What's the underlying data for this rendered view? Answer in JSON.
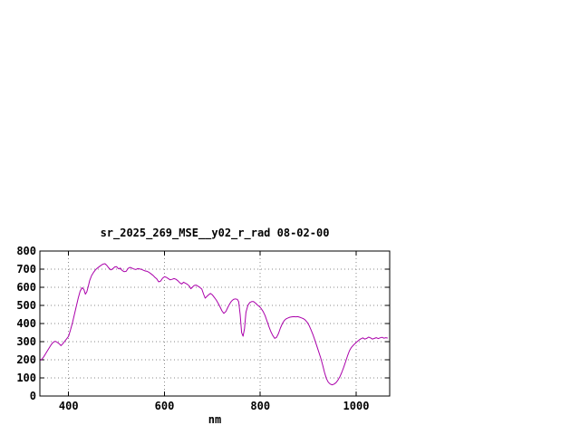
{
  "page": {
    "background": "#ffffff"
  },
  "chart_data": {
    "type": "line",
    "title": "sr_2025_269_MSE__y02_r_rad 08-02-00",
    "xlabel": "nm",
    "ylabel": "",
    "xlim": [
      340,
      1070
    ],
    "ylim": [
      0,
      800
    ],
    "xticks": [
      400,
      600,
      800,
      1000
    ],
    "yticks": [
      0,
      100,
      200,
      300,
      400,
      500,
      600,
      700,
      800
    ],
    "grid": true,
    "legend": "none",
    "axis_color": "#000000",
    "grid_color": "#8a8a8a",
    "text_color": "#000000",
    "series": [
      {
        "name": "sr_2025_269_MSE__y02_r_rad",
        "color": "#aa00aa",
        "points": [
          [
            342,
            198
          ],
          [
            345,
            206
          ],
          [
            348,
            216
          ],
          [
            352,
            233
          ],
          [
            356,
            251
          ],
          [
            360,
            268
          ],
          [
            364,
            285
          ],
          [
            368,
            297
          ],
          [
            372,
            302
          ],
          [
            376,
            297
          ],
          [
            380,
            289
          ],
          [
            384,
            278
          ],
          [
            388,
            289
          ],
          [
            392,
            303
          ],
          [
            396,
            316
          ],
          [
            400,
            330
          ],
          [
            404,
            365
          ],
          [
            408,
            405
          ],
          [
            412,
            450
          ],
          [
            416,
            495
          ],
          [
            420,
            540
          ],
          [
            424,
            578
          ],
          [
            428,
            598
          ],
          [
            432,
            588
          ],
          [
            435,
            562
          ],
          [
            438,
            575
          ],
          [
            441,
            605
          ],
          [
            444,
            638
          ],
          [
            448,
            665
          ],
          [
            452,
            682
          ],
          [
            456,
            696
          ],
          [
            460,
            706
          ],
          [
            464,
            714
          ],
          [
            468,
            722
          ],
          [
            472,
            728
          ],
          [
            476,
            730
          ],
          [
            480,
            720
          ],
          [
            484,
            706
          ],
          [
            488,
            696
          ],
          [
            492,
            702
          ],
          [
            496,
            712
          ],
          [
            500,
            714
          ],
          [
            504,
            702
          ],
          [
            508,
            706
          ],
          [
            512,
            692
          ],
          [
            516,
            686
          ],
          [
            520,
            688
          ],
          [
            524,
            704
          ],
          [
            528,
            710
          ],
          [
            532,
            706
          ],
          [
            536,
            701
          ],
          [
            540,
            698
          ],
          [
            544,
            703
          ],
          [
            548,
            701
          ],
          [
            552,
            699
          ],
          [
            556,
            694
          ],
          [
            560,
            690
          ],
          [
            564,
            688
          ],
          [
            568,
            682
          ],
          [
            572,
            674
          ],
          [
            576,
            666
          ],
          [
            580,
            655
          ],
          [
            584,
            646
          ],
          [
            588,
            630
          ],
          [
            592,
            634
          ],
          [
            596,
            650
          ],
          [
            600,
            658
          ],
          [
            604,
            655
          ],
          [
            608,
            648
          ],
          [
            612,
            641
          ],
          [
            616,
            644
          ],
          [
            620,
            648
          ],
          [
            624,
            644
          ],
          [
            628,
            636
          ],
          [
            632,
            625
          ],
          [
            636,
            618
          ],
          [
            640,
            628
          ],
          [
            644,
            622
          ],
          [
            648,
            616
          ],
          [
            652,
            606
          ],
          [
            655,
            592
          ],
          [
            658,
            600
          ],
          [
            662,
            610
          ],
          [
            666,
            612
          ],
          [
            670,
            606
          ],
          [
            674,
            599
          ],
          [
            678,
            590
          ],
          [
            682,
            560
          ],
          [
            685,
            540
          ],
          [
            688,
            548
          ],
          [
            692,
            558
          ],
          [
            696,
            566
          ],
          [
            700,
            558
          ],
          [
            704,
            544
          ],
          [
            708,
            530
          ],
          [
            712,
            512
          ],
          [
            716,
            492
          ],
          [
            720,
            470
          ],
          [
            724,
            456
          ],
          [
            728,
            466
          ],
          [
            732,
            488
          ],
          [
            736,
            508
          ],
          [
            740,
            524
          ],
          [
            744,
            533
          ],
          [
            748,
            536
          ],
          [
            752,
            533
          ],
          [
            755,
            520
          ],
          [
            758,
            450
          ],
          [
            761,
            350
          ],
          [
            764,
            330
          ],
          [
            767,
            372
          ],
          [
            770,
            462
          ],
          [
            774,
            500
          ],
          [
            778,
            516
          ],
          [
            782,
            521
          ],
          [
            786,
            521
          ],
          [
            790,
            513
          ],
          [
            794,
            502
          ],
          [
            798,
            494
          ],
          [
            802,
            482
          ],
          [
            806,
            466
          ],
          [
            810,
            444
          ],
          [
            814,
            414
          ],
          [
            818,
            382
          ],
          [
            822,
            355
          ],
          [
            826,
            334
          ],
          [
            830,
            318
          ],
          [
            834,
            324
          ],
          [
            838,
            345
          ],
          [
            842,
            375
          ],
          [
            846,
            400
          ],
          [
            850,
            417
          ],
          [
            854,
            426
          ],
          [
            858,
            431
          ],
          [
            862,
            435
          ],
          [
            866,
            437
          ],
          [
            870,
            438
          ],
          [
            874,
            437
          ],
          [
            878,
            438
          ],
          [
            882,
            435
          ],
          [
            886,
            431
          ],
          [
            890,
            427
          ],
          [
            894,
            419
          ],
          [
            898,
            406
          ],
          [
            902,
            388
          ],
          [
            906,
            364
          ],
          [
            910,
            338
          ],
          [
            914,
            308
          ],
          [
            918,
            276
          ],
          [
            922,
            244
          ],
          [
            926,
            210
          ],
          [
            930,
            172
          ],
          [
            934,
            130
          ],
          [
            938,
            96
          ],
          [
            942,
            76
          ],
          [
            946,
            66
          ],
          [
            950,
            62
          ],
          [
            954,
            66
          ],
          [
            958,
            74
          ],
          [
            962,
            88
          ],
          [
            966,
            106
          ],
          [
            970,
            130
          ],
          [
            974,
            158
          ],
          [
            978,
            190
          ],
          [
            982,
            222
          ],
          [
            986,
            250
          ],
          [
            990,
            268
          ],
          [
            994,
            280
          ],
          [
            998,
            290
          ],
          [
            1002,
            300
          ],
          [
            1006,
            309
          ],
          [
            1010,
            316
          ],
          [
            1014,
            321
          ],
          [
            1018,
            314
          ],
          [
            1022,
            318
          ],
          [
            1026,
            325
          ],
          [
            1030,
            321
          ],
          [
            1034,
            314
          ],
          [
            1038,
            318
          ],
          [
            1042,
            322
          ],
          [
            1046,
            317
          ],
          [
            1050,
            321
          ],
          [
            1054,
            324
          ],
          [
            1058,
            319
          ],
          [
            1062,
            322
          ],
          [
            1065,
            320
          ]
        ]
      }
    ]
  }
}
